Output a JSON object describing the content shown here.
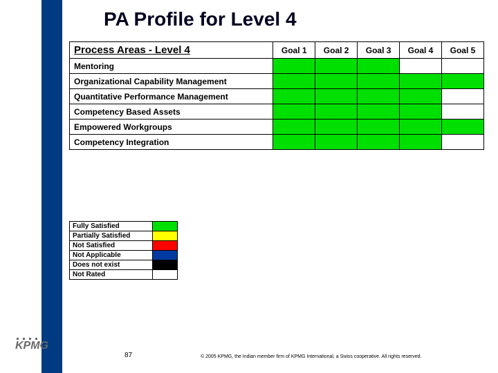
{
  "title": "PA Profile for Level 4",
  "colors": {
    "fully": "#00e000",
    "partially": "#ffff00",
    "not_satisfied": "#ff0000",
    "not_applicable": "#003aa0",
    "does_not_exist": "#000000",
    "not_rated": "#ffffff",
    "band": "#003a80"
  },
  "matrix": {
    "header_pa": "Process Areas - Level 4",
    "goal_headers": [
      "Goal 1",
      "Goal 2",
      "Goal 3",
      "Goal 4",
      "Goal 5"
    ],
    "rows": [
      {
        "label": "Mentoring",
        "cells": [
          "fully",
          "fully",
          "fully",
          "not_rated",
          "not_rated"
        ]
      },
      {
        "label": "Organizational Capability Management",
        "cells": [
          "fully",
          "fully",
          "fully",
          "fully",
          "fully"
        ]
      },
      {
        "label": "Quantitative Performance Management",
        "cells": [
          "fully",
          "fully",
          "fully",
          "fully",
          "not_rated"
        ]
      },
      {
        "label": "Competency Based Assets",
        "cells": [
          "fully",
          "fully",
          "fully",
          "fully",
          "not_rated"
        ]
      },
      {
        "label": "Empowered Workgroups",
        "cells": [
          "fully",
          "fully",
          "fully",
          "fully",
          "fully"
        ]
      },
      {
        "label": "Competency Integration",
        "cells": [
          "fully",
          "fully",
          "fully",
          "fully",
          "not_rated"
        ]
      }
    ]
  },
  "legend": [
    {
      "label": "Fully Satisfied",
      "color_key": "fully"
    },
    {
      "label": "Partially Satisfied",
      "color_key": "partially"
    },
    {
      "label": "Not Satisfied",
      "color_key": "not_satisfied"
    },
    {
      "label": "Not Applicable",
      "color_key": "not_applicable"
    },
    {
      "label": "Does not exist",
      "color_key": "does_not_exist"
    },
    {
      "label": "Not Rated",
      "color_key": "not_rated"
    }
  ],
  "footer": {
    "logo": "KPMG",
    "page_number": "87",
    "copyright": "© 2005 KPMG, the Indian member firm of KPMG International, a Swiss cooperative. All rights reserved."
  }
}
